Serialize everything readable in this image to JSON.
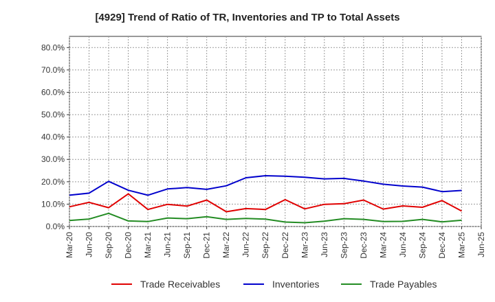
{
  "chart_data": {
    "type": "line",
    "title": "[4929]  Trend of Ratio of TR, Inventories and TP to Total Assets",
    "xlabel": "",
    "ylabel": "",
    "ylim": [
      0,
      85
    ],
    "y_ticks": [
      "0.0%",
      "10.0%",
      "20.0%",
      "30.0%",
      "40.0%",
      "50.0%",
      "60.0%",
      "70.0%",
      "80.0%"
    ],
    "y_tick_values": [
      0,
      10,
      20,
      30,
      40,
      50,
      60,
      70,
      80
    ],
    "x_ticks": [
      "Mar-20",
      "Jun-20",
      "Sep-20",
      "Dec-20",
      "Mar-21",
      "Jun-21",
      "Sep-21",
      "Dec-21",
      "Mar-22",
      "Jun-22",
      "Sep-22",
      "Dec-22",
      "Mar-23",
      "Jun-23",
      "Sep-23",
      "Dec-23",
      "Mar-24",
      "Jun-24",
      "Sep-24",
      "Dec-24",
      "Mar-25",
      "Jun-25"
    ],
    "categories": [
      "Mar-20",
      "Jun-20",
      "Sep-20",
      "Dec-20",
      "Mar-21",
      "Jun-21",
      "Sep-21",
      "Dec-21",
      "Mar-22",
      "Jun-22",
      "Sep-22",
      "Dec-22",
      "Mar-23",
      "Jun-23",
      "Sep-23",
      "Dec-23",
      "Mar-24",
      "Jun-24",
      "Sep-24",
      "Dec-24",
      "Mar-25"
    ],
    "grid": true,
    "legend_position": "bottom",
    "series": [
      {
        "name": "Trade Receivables",
        "color": "#e00000",
        "values": [
          8.8,
          10.8,
          8.4,
          14.6,
          7.6,
          9.9,
          9.1,
          11.8,
          6.6,
          8.0,
          7.6,
          12.0,
          7.9,
          9.9,
          10.2,
          11.8,
          7.8,
          9.2,
          8.6,
          11.6,
          6.9
        ]
      },
      {
        "name": "Inventories",
        "color": "#0000cc",
        "values": [
          14.0,
          14.9,
          20.2,
          16.2,
          14.0,
          16.8,
          17.4,
          16.6,
          18.2,
          21.8,
          22.7,
          22.5,
          22.0,
          21.3,
          21.5,
          20.3,
          18.9,
          18.1,
          17.6,
          15.6,
          16.1
        ]
      },
      {
        "name": "Trade Payables",
        "color": "#228b22",
        "values": [
          2.7,
          3.3,
          5.9,
          2.5,
          2.2,
          3.8,
          3.5,
          4.4,
          3.2,
          3.6,
          3.3,
          2.0,
          1.7,
          2.4,
          3.5,
          3.2,
          2.2,
          2.3,
          3.2,
          2.1,
          2.8
        ]
      }
    ]
  }
}
